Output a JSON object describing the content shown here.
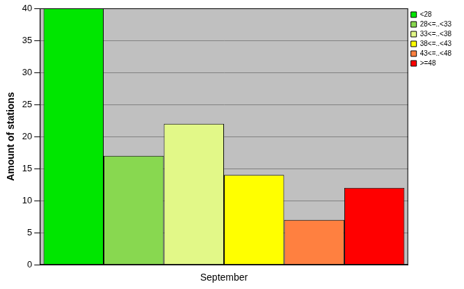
{
  "chart_data": {
    "type": "bar",
    "categories": [
      "September"
    ],
    "series": [
      {
        "name": "<28",
        "color": "#00e600",
        "values": [
          40
        ]
      },
      {
        "name": "28<=..<33",
        "color": "#88d850",
        "values": [
          17
        ]
      },
      {
        "name": "33<=..<38",
        "color": "#e2f888",
        "values": [
          22
        ]
      },
      {
        "name": "38<=..<43",
        "color": "#ffff00",
        "values": [
          14
        ]
      },
      {
        "name": "43<=..<48",
        "color": "#ff8040",
        "values": [
          7
        ]
      },
      {
        "name": ">=48",
        "color": "#ff0000",
        "values": [
          12
        ]
      }
    ],
    "ylabel": "Amount of stations",
    "ylim": [
      0,
      40
    ],
    "yticks": [
      0,
      5,
      10,
      15,
      20,
      25,
      30,
      35,
      40
    ],
    "grid": true,
    "legend": "upper right"
  }
}
